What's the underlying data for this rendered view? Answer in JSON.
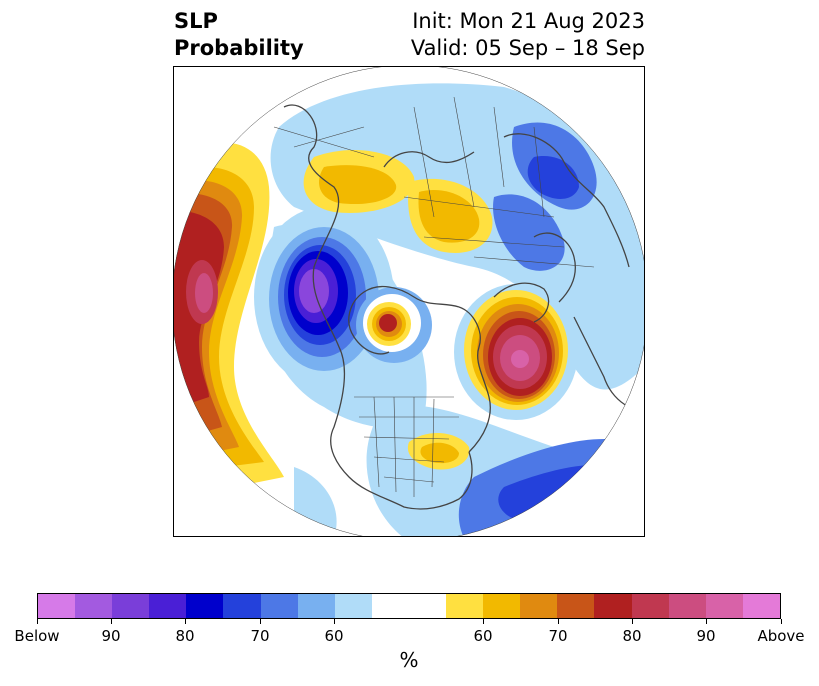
{
  "title": {
    "left_line1": "SLP",
    "left_line2": "Probability",
    "right_line1": "Init: Mon 21 Aug 2023",
    "right_line2": "Valid: 05 Sep – 18 Sep"
  },
  "colorbar": {
    "unit_label": "%",
    "colors": [
      "#d67ae8",
      "#a35ae0",
      "#7a3ed9",
      "#4a1fd6",
      "#0000cc",
      "#2441db",
      "#4d78e6",
      "#78b0f0",
      "#b0dcf8",
      "#ffffff",
      "#ffffff",
      "#ffe040",
      "#f2b900",
      "#e08a10",
      "#c85518",
      "#b02020",
      "#c03850",
      "#cc4d80",
      "#d862a8",
      "#e47ad8"
    ],
    "tick_labels": [
      "Below",
      "90",
      "80",
      "70",
      "60",
      "60",
      "70",
      "80",
      "90",
      "Above"
    ]
  },
  "colors": {
    "below_strong": "#8a46dc",
    "below_mid": "#0000cc",
    "below_weak": "#78b0f0",
    "below_faint": "#b0dcf8",
    "above_faint": "#ffe040",
    "above_mid": "#e08a10",
    "above_strong": "#b02020",
    "above_peak": "#cc4d80",
    "coastline": "#444444"
  },
  "map": {
    "projection": "north-polar-stereographic",
    "region": "Northern Hemisphere"
  }
}
